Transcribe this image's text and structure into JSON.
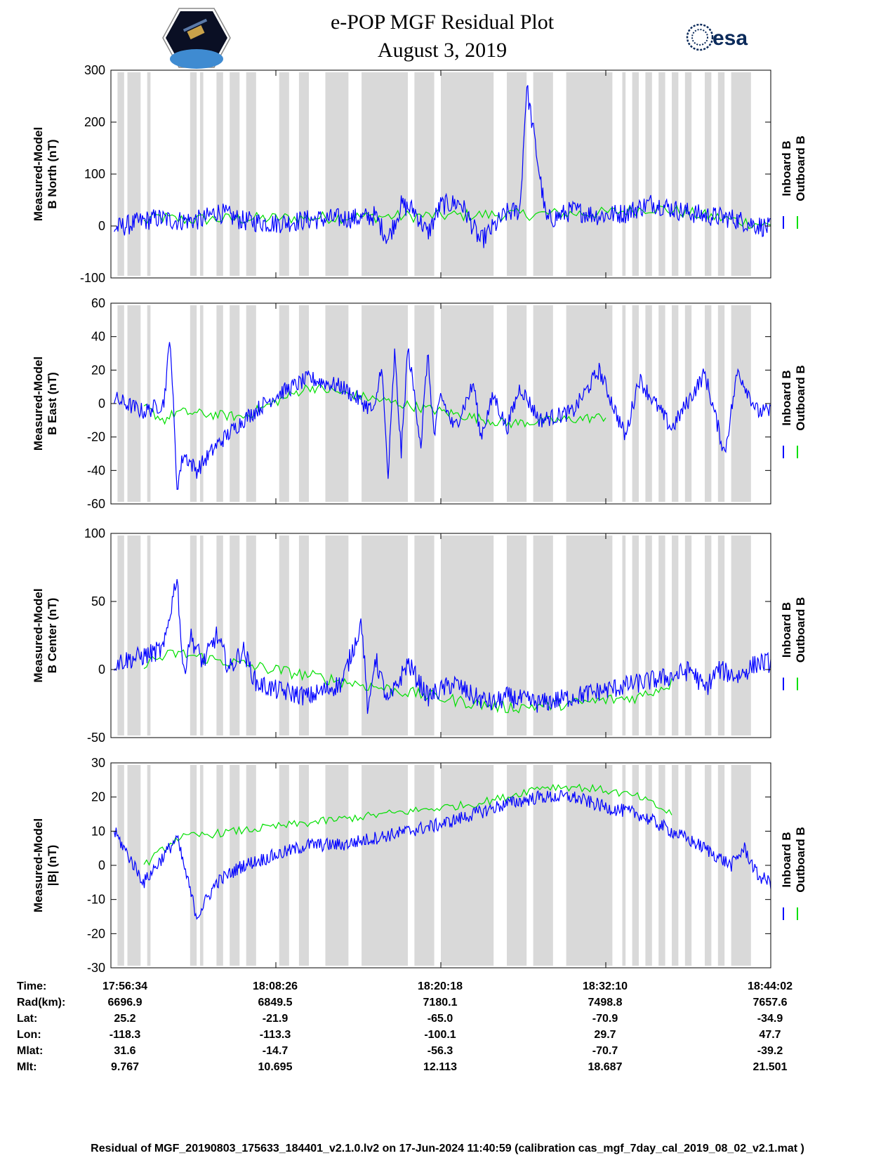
{
  "header": {
    "title": "e-POP MGF Residual Plot",
    "date": "August 3, 2019",
    "logo_right_text": "esa"
  },
  "colors": {
    "inboard": "#0000ff",
    "outboard": "#00e000",
    "gap": "#d9d9d9",
    "axis": "#000000"
  },
  "chart_data": [
    {
      "type": "line",
      "ylabel": [
        "Measured-Model",
        "B North (nT)"
      ],
      "ylim": [
        -100,
        300
      ],
      "yticks": [
        "-100",
        "0",
        "100",
        "200",
        "300"
      ],
      "legend": [
        "Inboard B",
        "Outboard B"
      ],
      "series": [
        {
          "name": "Inboard B",
          "x": [
            0.005,
            0.05,
            0.07,
            0.1,
            0.14,
            0.16,
            0.2,
            0.25,
            0.3,
            0.35,
            0.38,
            0.4,
            0.42,
            0.44,
            0.46,
            0.48,
            0.5,
            0.53,
            0.56,
            0.6,
            0.62,
            0.63,
            0.66,
            0.7,
            0.74,
            0.78,
            0.82,
            0.86,
            0.9,
            0.94,
            0.97,
            1.0
          ],
          "y": [
            -5,
            10,
            15,
            10,
            12,
            28,
            10,
            5,
            12,
            15,
            15,
            20,
            -25,
            40,
            30,
            -15,
            40,
            45,
            -30,
            25,
            30,
            270,
            10,
            30,
            20,
            25,
            45,
            30,
            20,
            15,
            5,
            -5
          ]
        },
        {
          "name": "Outboard B",
          "x": [
            0.05,
            0.07,
            0.1,
            0.75,
            0.82,
            0.86,
            1.0
          ],
          "y": [
            8,
            18,
            12,
            25,
            35,
            28,
            0
          ]
        }
      ]
    },
    {
      "type": "line",
      "ylabel": [
        "Measured-Model",
        "B East (nT)"
      ],
      "ylim": [
        -60,
        60
      ],
      "yticks": [
        "-60",
        "-40",
        "-20",
        "0",
        "20",
        "40",
        "60"
      ],
      "legend": [
        "Inboard B",
        "Outboard B"
      ],
      "series": [
        {
          "name": "Inboard B",
          "x": [
            0.005,
            0.05,
            0.08,
            0.09,
            0.1,
            0.11,
            0.13,
            0.16,
            0.2,
            0.25,
            0.3,
            0.35,
            0.4,
            0.41,
            0.42,
            0.43,
            0.44,
            0.45,
            0.46,
            0.47,
            0.48,
            0.49,
            0.5,
            0.52,
            0.55,
            0.56,
            0.58,
            0.6,
            0.62,
            0.65,
            0.7,
            0.74,
            0.78,
            0.8,
            0.85,
            0.9,
            0.93,
            0.95,
            0.98,
            1.0
          ],
          "y": [
            3,
            -5,
            0,
            40,
            -50,
            -30,
            -40,
            -25,
            -10,
            5,
            15,
            10,
            -5,
            25,
            -45,
            30,
            -30,
            33,
            5,
            -25,
            30,
            -20,
            5,
            -15,
            12,
            -20,
            5,
            -15,
            10,
            -10,
            -5,
            20,
            -20,
            15,
            -15,
            18,
            -30,
            20,
            -5,
            -5
          ]
        },
        {
          "name": "Outboard B",
          "x": [
            0.05,
            0.08,
            0.1,
            0.2,
            0.3,
            0.6,
            0.75
          ],
          "y": [
            -2,
            -10,
            -5,
            -8,
            10,
            -12,
            -8
          ]
        }
      ]
    },
    {
      "type": "line",
      "ylabel": [
        "Measured-Model",
        "B Center (nT)"
      ],
      "ylim": [
        -50,
        100
      ],
      "yticks": [
        "-50",
        "0",
        "50",
        "100"
      ],
      "legend": [
        "Inboard B",
        "Outboard B"
      ],
      "series": [
        {
          "name": "Inboard B",
          "x": [
            0.005,
            0.05,
            0.08,
            0.1,
            0.11,
            0.12,
            0.14,
            0.16,
            0.18,
            0.2,
            0.22,
            0.25,
            0.3,
            0.35,
            0.38,
            0.39,
            0.4,
            0.42,
            0.45,
            0.48,
            0.52,
            0.55,
            0.58,
            0.6,
            0.65,
            0.7,
            0.75,
            0.8,
            0.85,
            0.88,
            0.9,
            0.92,
            0.95,
            0.98,
            1.0
          ],
          "y": [
            5,
            10,
            15,
            70,
            -5,
            25,
            5,
            25,
            0,
            15,
            -10,
            -15,
            -20,
            -10,
            35,
            -35,
            10,
            -25,
            5,
            -20,
            -10,
            -20,
            -25,
            -20,
            -25,
            -20,
            -15,
            -10,
            -5,
            0,
            -15,
            0,
            -5,
            5,
            5
          ]
        },
        {
          "name": "Outboard B",
          "x": [
            0.05,
            0.1,
            0.55,
            0.6,
            0.7,
            0.8,
            0.85
          ],
          "y": [
            5,
            12,
            -25,
            -28,
            -25,
            -20,
            -10
          ]
        }
      ]
    },
    {
      "type": "line",
      "ylabel": [
        "Measured-Model",
        "|B| (nT)"
      ],
      "ylim": [
        -30,
        30
      ],
      "yticks": [
        "-30",
        "-20",
        "-10",
        "0",
        "10",
        "20",
        "30"
      ],
      "legend": [
        "Inboard B",
        "Outboard B"
      ],
      "series": [
        {
          "name": "Inboard B",
          "x": [
            0.005,
            0.05,
            0.1,
            0.13,
            0.16,
            0.2,
            0.25,
            0.3,
            0.35,
            0.4,
            0.45,
            0.5,
            0.55,
            0.6,
            0.65,
            0.7,
            0.75,
            0.8,
            0.85,
            0.9,
            0.94,
            0.96,
            0.98,
            1.0
          ],
          "y": [
            10,
            -5,
            8,
            -15,
            -5,
            0,
            3,
            6,
            6,
            8,
            10,
            12,
            15,
            18,
            20,
            20,
            17,
            15,
            10,
            5,
            0,
            5,
            -3,
            -5
          ]
        },
        {
          "name": "Outboard B",
          "x": [
            0.05,
            0.1,
            0.55,
            0.6,
            0.65,
            0.7,
            0.75,
            0.8,
            0.85
          ],
          "y": [
            0,
            8,
            18,
            20,
            23,
            23,
            22,
            20,
            15
          ]
        }
      ]
    }
  ],
  "xaxis": {
    "time_ticks": [
      "17:56:34",
      "18:08:26",
      "18:20:18",
      "18:32:10",
      "18:44:02"
    ]
  },
  "info_table": {
    "labels": [
      "Time:",
      "Rad(km):",
      "Lat:",
      "Lon:",
      "Mlat:",
      "Mlt:"
    ],
    "columns": [
      [
        "17:56:34",
        "6696.9",
        "25.2",
        "-118.3",
        "31.6",
        "9.767"
      ],
      [
        "18:08:26",
        "6849.5",
        "-21.9",
        "-113.3",
        "-14.7",
        "10.695"
      ],
      [
        "18:20:18",
        "7180.1",
        "-65.0",
        "-100.1",
        "-56.3",
        "12.113"
      ],
      [
        "18:32:10",
        "7498.8",
        "-70.9",
        "29.7",
        "-70.7",
        "18.687"
      ],
      [
        "18:44:02",
        "7657.6",
        "-34.9",
        "47.7",
        "-39.2",
        "21.501"
      ]
    ]
  },
  "footer": "Residual of MGF_20190803_175633_184401_v2.1.0.lv2 on 17-Jun-2024 11:40:59 (calibration cas_mgf_7day_cal_2019_08_02_v2.1.mat )"
}
